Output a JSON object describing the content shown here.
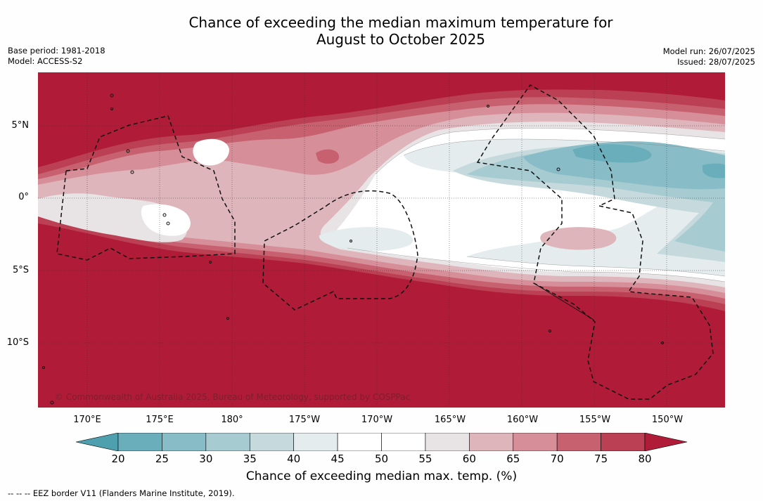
{
  "header": {
    "title_line1": "Chance of exceeding the median maximum temperature for",
    "title_line2": "August to October 2025",
    "base_period": "Base period: 1981-2018",
    "model": "Model: ACCESS-S2",
    "model_run": "Model run: 26/07/2025",
    "issued": "Issued: 28/07/2025"
  },
  "map": {
    "lat_labels": [
      "5°N",
      "0°",
      "5°S",
      "10°S"
    ],
    "lon_labels": [
      "170°E",
      "175°E",
      "180°",
      "175°W",
      "170°W",
      "165°W",
      "160°W",
      "155°W",
      "150°W"
    ],
    "copyright": "© Commonwealth of Australia 2025, Bureau of Meteorology, supported by COSPPac"
  },
  "colorbar": {
    "ticks": [
      "20",
      "25",
      "30",
      "35",
      "40",
      "45",
      "50",
      "55",
      "60",
      "65",
      "70",
      "75",
      "80"
    ],
    "colors": [
      "#4fa0af",
      "#6aaebb",
      "#88bcc6",
      "#a6cbd1",
      "#c6d9dd",
      "#e4ecee",
      "#ffffff",
      "#ffffff",
      "#e8e4e5",
      "#dfb5bc",
      "#d68e99",
      "#c7606f",
      "#bc4053",
      "#b01c37"
    ],
    "title": "Chance of exceeding median max. temp. (%)"
  },
  "footer": {
    "eez_note": "--  --  -- EEZ border V11 (Flanders Marine Institute, 2019)."
  }
}
